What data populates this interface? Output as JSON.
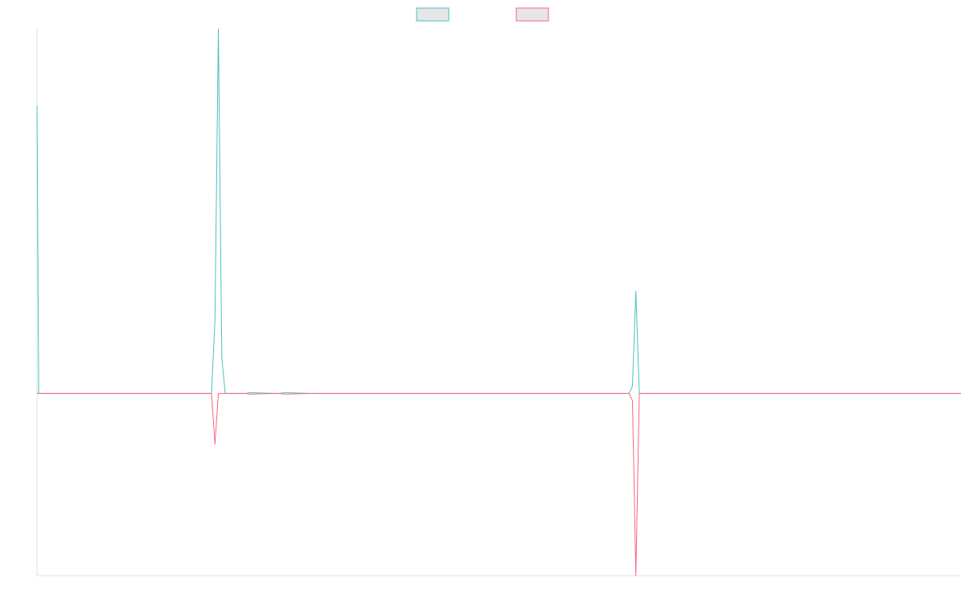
{
  "chart_data": {
    "type": "line",
    "title": "",
    "xlabel": "",
    "ylabel": "",
    "grid": false,
    "legend_placement": "top-center",
    "xlim": [
      0,
      270
    ],
    "ylim": [
      -1,
      2
    ],
    "series": [
      {
        "name": "",
        "color": "#4bc0c0",
        "fill": "#e6e6e6",
        "x": [
          0,
          0.5,
          1,
          51,
          52,
          53,
          54,
          55,
          61,
          62,
          70,
          71,
          72,
          80,
          81,
          82,
          173,
          174,
          175,
          176,
          270
        ],
        "y": [
          1.58,
          0,
          0,
          0,
          0.4,
          2.0,
          0.2,
          0,
          0,
          0.004,
          0,
          0,
          0.004,
          0,
          0,
          0,
          0,
          0.04,
          0.56,
          0,
          0
        ]
      },
      {
        "name": "",
        "color": "#ff6384",
        "fill": "#e6e6e6",
        "x": [
          0,
          51,
          52,
          53,
          54,
          55,
          61,
          62,
          70,
          71,
          72,
          80,
          81,
          82,
          173,
          174,
          175,
          176,
          270
        ],
        "y": [
          0,
          0,
          -0.28,
          0,
          0,
          0,
          0,
          -0.004,
          0,
          0,
          -0.004,
          0,
          0,
          0,
          0,
          -0.04,
          -1.0,
          0,
          0
        ]
      }
    ]
  }
}
